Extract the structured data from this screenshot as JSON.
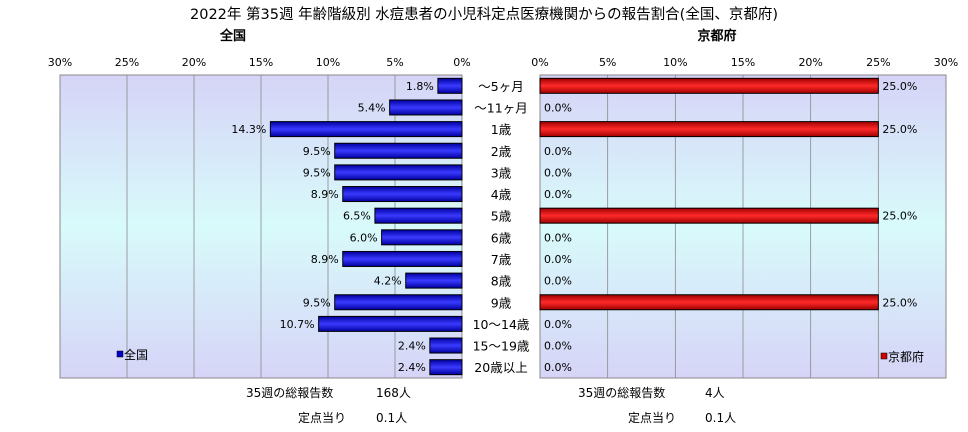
{
  "title": "2022年 第35週 年齢階級別 水痘患者の小児科定点医療機関からの報告割合(全国、京都府)",
  "chart_data": [
    {
      "type": "bar",
      "orientation": "horizontal",
      "title": "全国",
      "categories": [
        "～5ヶ月",
        "～11ヶ月",
        "1歳",
        "2歳",
        "3歳",
        "4歳",
        "5歳",
        "6歳",
        "7歳",
        "8歳",
        "9歳",
        "10～14歳",
        "15～19歳",
        "20歳以上"
      ],
      "series": [
        {
          "name": "全国",
          "color": "#0000cc",
          "values": [
            1.8,
            5.4,
            14.3,
            9.5,
            9.5,
            8.9,
            6.5,
            6.0,
            8.9,
            4.2,
            9.5,
            10.7,
            2.4,
            2.4
          ],
          "labels": [
            "1.8%",
            "5.4%",
            "14.3%",
            "9.5%",
            "9.5%",
            "8.9%",
            "6.5%",
            "6.0%",
            "8.9%",
            "4.2%",
            "9.5%",
            "10.7%",
            "2.4%",
            "2.4%"
          ]
        }
      ],
      "xlim": [
        0,
        30
      ],
      "xticks": [
        "0%",
        "5%",
        "10%",
        "15%",
        "20%",
        "25%",
        "30%"
      ],
      "x_reversed": true,
      "grid": true,
      "legend": "bottom-left"
    },
    {
      "type": "bar",
      "orientation": "horizontal",
      "title": "京都府",
      "categories": [
        "～5ヶ月",
        "～11ヶ月",
        "1歳",
        "2歳",
        "3歳",
        "4歳",
        "5歳",
        "6歳",
        "7歳",
        "8歳",
        "9歳",
        "10～14歳",
        "15～19歳",
        "20歳以上"
      ],
      "series": [
        {
          "name": "京都府",
          "color": "#cc0000",
          "values": [
            25.0,
            0.0,
            25.0,
            0.0,
            0.0,
            0.0,
            25.0,
            0.0,
            0.0,
            0.0,
            25.0,
            0.0,
            0.0,
            0.0
          ],
          "labels": [
            "25.0%",
            "0.0%",
            "25.0%",
            "0.0%",
            "0.0%",
            "0.0%",
            "25.0%",
            "0.0%",
            "0.0%",
            "0.0%",
            "25.0%",
            "0.0%",
            "0.0%",
            "0.0%"
          ]
        }
      ],
      "xlim": [
        0,
        30
      ],
      "xticks": [
        "0%",
        "5%",
        "10%",
        "15%",
        "20%",
        "25%",
        "30%"
      ],
      "x_reversed": false,
      "grid": true,
      "legend": "bottom-right"
    }
  ],
  "summary": {
    "national": {
      "label": "35週の総報告数",
      "count": "168人",
      "per_label": "定点当り",
      "per_value": "0.1人"
    },
    "kyoto": {
      "label": "35週の総報告数",
      "count": "4人",
      "per_label": "定点当り",
      "per_value": "0.1人"
    }
  }
}
